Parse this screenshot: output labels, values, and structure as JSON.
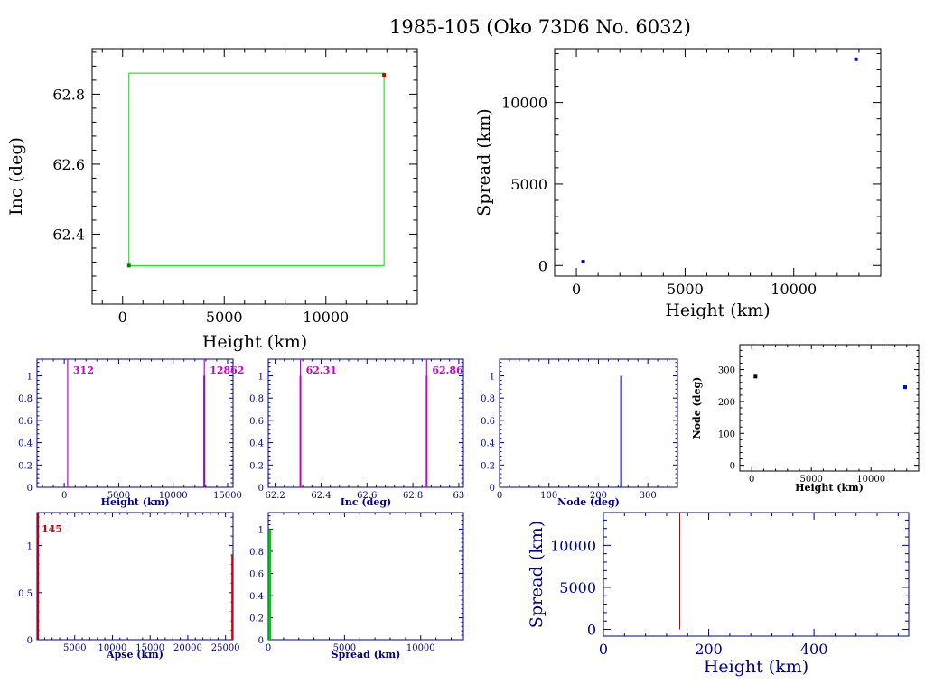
{
  "title": "1985-105 (Oko 73D6 No. 6032)",
  "chart_data": [
    {
      "id": "inc_vs_height",
      "type": "scatter",
      "xlabel": "Height (km)",
      "ylabel": "Inc (deg)",
      "xlim": [
        -1500,
        14500
      ],
      "ylim": [
        62.2,
        62.93
      ],
      "xticks": [
        0,
        5000,
        10000
      ],
      "yticks": [
        62.4,
        62.6,
        62.8
      ],
      "points": [
        {
          "x": 312,
          "y": 62.31,
          "color": "#008000"
        },
        {
          "x": 12862,
          "y": 62.855,
          "color": "#cc0000"
        }
      ],
      "box": {
        "x0": 312,
        "x1": 12862,
        "y0": 62.31,
        "y1": 62.86,
        "color": "#00dd00"
      }
    },
    {
      "id": "spread_vs_height",
      "type": "scatter",
      "xlabel": "Height (km)",
      "ylabel": "Spread (km)",
      "xlim": [
        -1000,
        14000
      ],
      "ylim": [
        -650,
        13300
      ],
      "xticks": [
        0,
        5000,
        10000
      ],
      "yticks": [
        0,
        5000,
        10000
      ],
      "points": [
        {
          "x": 312,
          "y": 230,
          "color": "#000080"
        },
        {
          "x": 12862,
          "y": 12650,
          "color": "#0000ff"
        }
      ]
    },
    {
      "id": "hist_height",
      "type": "bar",
      "xlabel": "Height (km)",
      "xlim": [
        -2500,
        15500
      ],
      "ylim": [
        0,
        1.15
      ],
      "xticks": [
        0,
        5000,
        10000,
        15000
      ],
      "yticks": [
        0,
        0.2,
        0.4,
        0.6,
        0.8,
        1
      ],
      "bars": [
        {
          "x": 12862,
          "y": 1
        }
      ],
      "markers": [
        {
          "x": 312,
          "label": "312"
        },
        {
          "x": 12862,
          "label": "12862"
        }
      ]
    },
    {
      "id": "hist_inc",
      "type": "bar",
      "xlabel": "Inc (deg)",
      "xlim": [
        62.17,
        63.02
      ],
      "ylim": [
        0,
        1.15
      ],
      "xticks": [
        62.2,
        62.4,
        62.6,
        62.8,
        63
      ],
      "yticks": [
        0,
        0.2,
        0.4,
        0.6,
        0.8,
        1
      ],
      "bars": [
        {
          "x": 62.31,
          "y": 1
        },
        {
          "x": 62.86,
          "y": 1
        }
      ],
      "markers": [
        {
          "x": 62.31,
          "label": "62.31"
        },
        {
          "x": 62.86,
          "label": "62.86"
        }
      ]
    },
    {
      "id": "hist_node",
      "type": "bar",
      "xlabel": "Node (deg)",
      "xlim": [
        0,
        360
      ],
      "ylim": [
        0,
        1.15
      ],
      "xticks": [
        0,
        100,
        200,
        300
      ],
      "yticks": [
        0,
        0.2,
        0.4,
        0.6,
        0.8,
        1
      ],
      "bars": [
        {
          "x": 246,
          "y": 1
        }
      ]
    },
    {
      "id": "node_vs_height",
      "type": "scatter",
      "xlabel": "Height (km)",
      "ylabel": "Node (deg)",
      "xlim": [
        -1000,
        14000
      ],
      "ylim": [
        -18,
        378
      ],
      "xticks": [
        0,
        5000,
        10000
      ],
      "yticks": [
        0,
        100,
        200,
        300
      ],
      "points": [
        {
          "x": 312,
          "y": 278,
          "color": "#000000"
        },
        {
          "x": 12862,
          "y": 245,
          "color": "#0000ff"
        }
      ]
    },
    {
      "id": "hist_apse",
      "type": "bar",
      "xlabel": "Apse (km)",
      "xlim": [
        0,
        26000
      ],
      "ylim": [
        0,
        1.35
      ],
      "xticks": [
        5000,
        10000,
        15000,
        20000,
        25000
      ],
      "yticks": [
        0,
        0.5,
        1
      ],
      "bars": [
        {
          "x": 145,
          "y": 1.35
        },
        {
          "x": 25900,
          "y": 0.9
        }
      ],
      "markers": [
        {
          "x": 145,
          "label": "145"
        }
      ]
    },
    {
      "id": "hist_spread",
      "type": "bar",
      "xlabel": "Spread (km)",
      "xlim": [
        0,
        12800
      ],
      "ylim": [
        0,
        1.15
      ],
      "xticks": [
        0,
        5000,
        10000
      ],
      "yticks": [
        0,
        0.2,
        0.4,
        0.6,
        0.8,
        1
      ],
      "bars": [
        {
          "x": 100,
          "y": 1
        }
      ]
    },
    {
      "id": "spread_vs_height_2",
      "type": "scatter",
      "xlabel": "Height (km)",
      "ylabel": "Spread (km)",
      "xlim": [
        0,
        580
      ],
      "ylim": [
        -800,
        13900
      ],
      "xticks": [
        0,
        200,
        400
      ],
      "yticks": [
        0,
        5000,
        10000
      ],
      "lines": [
        {
          "x": 145,
          "y0": 0,
          "y1": 13900,
          "color": "#cc0000"
        }
      ]
    }
  ]
}
